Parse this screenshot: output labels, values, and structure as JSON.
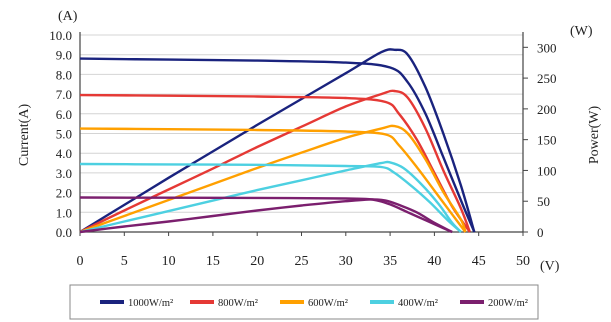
{
  "chart_data": {
    "type": "line",
    "y_axis_left": {
      "label": "Current(A)",
      "unit": "(A)",
      "range": [
        0,
        10
      ],
      "ticks": [
        "0.0",
        "1.0",
        "2.0",
        "3.0",
        "4.0",
        "5.0",
        "6.0",
        "7.0",
        "8.0",
        "9.0",
        "10.0"
      ]
    },
    "y_axis_right": {
      "label": "Power(W)",
      "unit": "(W)",
      "range": [
        0,
        320
      ],
      "ticks": [
        "0",
        "50",
        "100",
        "150",
        "200",
        "250",
        "300"
      ]
    },
    "x_axis": {
      "unit": "(V)",
      "range": [
        0,
        50
      ],
      "ticks": [
        "0",
        "5",
        "10",
        "15",
        "20",
        "25",
        "30",
        "35",
        "40",
        "45",
        "50"
      ]
    },
    "grid": {
      "horizontal": true,
      "vertical": false
    },
    "legend_position": "bottom",
    "series": [
      {
        "name": "1000W/m²",
        "color": "#1a237e",
        "current": [
          [
            0,
            8.8
          ],
          [
            10,
            8.75
          ],
          [
            20,
            8.7
          ],
          [
            30,
            8.6
          ],
          [
            35,
            8.35
          ],
          [
            37,
            7.6
          ],
          [
            39,
            6.0
          ],
          [
            41,
            3.8
          ],
          [
            43,
            1.6
          ],
          [
            44.5,
            0
          ]
        ],
        "power": [
          [
            0,
            0
          ],
          [
            5,
            44
          ],
          [
            10,
            88
          ],
          [
            15,
            131
          ],
          [
            20,
            174
          ],
          [
            25,
            216
          ],
          [
            30,
            258
          ],
          [
            34,
            292
          ],
          [
            35.5,
            296
          ],
          [
            37,
            288
          ],
          [
            39,
            235
          ],
          [
            41,
            160
          ],
          [
            43,
            75
          ],
          [
            44.5,
            0
          ]
        ]
      },
      {
        "name": "800W/m²",
        "color": "#e53935",
        "current": [
          [
            0,
            6.95
          ],
          [
            10,
            6.92
          ],
          [
            20,
            6.88
          ],
          [
            30,
            6.8
          ],
          [
            34.5,
            6.6
          ],
          [
            36,
            6.0
          ],
          [
            38,
            4.7
          ],
          [
            40,
            3.0
          ],
          [
            42,
            1.3
          ],
          [
            44,
            0
          ]
        ],
        "power": [
          [
            0,
            0
          ],
          [
            5,
            35
          ],
          [
            10,
            69
          ],
          [
            15,
            103
          ],
          [
            20,
            138
          ],
          [
            25,
            171
          ],
          [
            30,
            204
          ],
          [
            34,
            224
          ],
          [
            35.5,
            229
          ],
          [
            37,
            218
          ],
          [
            39,
            168
          ],
          [
            41,
            100
          ],
          [
            43,
            38
          ],
          [
            44,
            0
          ]
        ]
      },
      {
        "name": "600W/m²",
        "color": "#ffa000",
        "current": [
          [
            0,
            5.25
          ],
          [
            10,
            5.22
          ],
          [
            20,
            5.18
          ],
          [
            30,
            5.1
          ],
          [
            34.5,
            4.95
          ],
          [
            36,
            4.4
          ],
          [
            38,
            3.3
          ],
          [
            40,
            2.1
          ],
          [
            42,
            0.9
          ],
          [
            43.5,
            0
          ]
        ],
        "power": [
          [
            0,
            0
          ],
          [
            5,
            26
          ],
          [
            10,
            52
          ],
          [
            15,
            78
          ],
          [
            20,
            104
          ],
          [
            25,
            129
          ],
          [
            30,
            153
          ],
          [
            34,
            168
          ],
          [
            35.5,
            172
          ],
          [
            37,
            160
          ],
          [
            39,
            118
          ],
          [
            41,
            65
          ],
          [
            43,
            20
          ],
          [
            43.5,
            0
          ]
        ]
      },
      {
        "name": "400W/m²",
        "color": "#4dd0e1",
        "current": [
          [
            0,
            3.45
          ],
          [
            10,
            3.43
          ],
          [
            20,
            3.41
          ],
          [
            30,
            3.35
          ],
          [
            34,
            3.3
          ],
          [
            35.5,
            3.0
          ],
          [
            37.5,
            2.3
          ],
          [
            39.5,
            1.5
          ],
          [
            41.5,
            0.6
          ],
          [
            43,
            0
          ]
        ],
        "power": [
          [
            0,
            0
          ],
          [
            5,
            17
          ],
          [
            10,
            34
          ],
          [
            15,
            51
          ],
          [
            20,
            68
          ],
          [
            25,
            84
          ],
          [
            30,
            100
          ],
          [
            34,
            112
          ],
          [
            35,
            113
          ],
          [
            36.5,
            104
          ],
          [
            38.5,
            78
          ],
          [
            40.5,
            45
          ],
          [
            42,
            15
          ],
          [
            43,
            0
          ]
        ]
      },
      {
        "name": "200W/m²",
        "color": "#7b1f6e",
        "current": [
          [
            0,
            1.75
          ],
          [
            10,
            1.74
          ],
          [
            20,
            1.73
          ],
          [
            30,
            1.7
          ],
          [
            33,
            1.65
          ],
          [
            35,
            1.4
          ],
          [
            37,
            1.0
          ],
          [
            39,
            0.6
          ],
          [
            41,
            0.2
          ],
          [
            42,
            0
          ]
        ],
        "power": [
          [
            0,
            0
          ],
          [
            5,
            9
          ],
          [
            10,
            17
          ],
          [
            15,
            26
          ],
          [
            20,
            35
          ],
          [
            25,
            43
          ],
          [
            30,
            50
          ],
          [
            33,
            53
          ],
          [
            34.5,
            51
          ],
          [
            36,
            44
          ],
          [
            38,
            32
          ],
          [
            40,
            15
          ],
          [
            42,
            0
          ]
        ]
      }
    ]
  }
}
